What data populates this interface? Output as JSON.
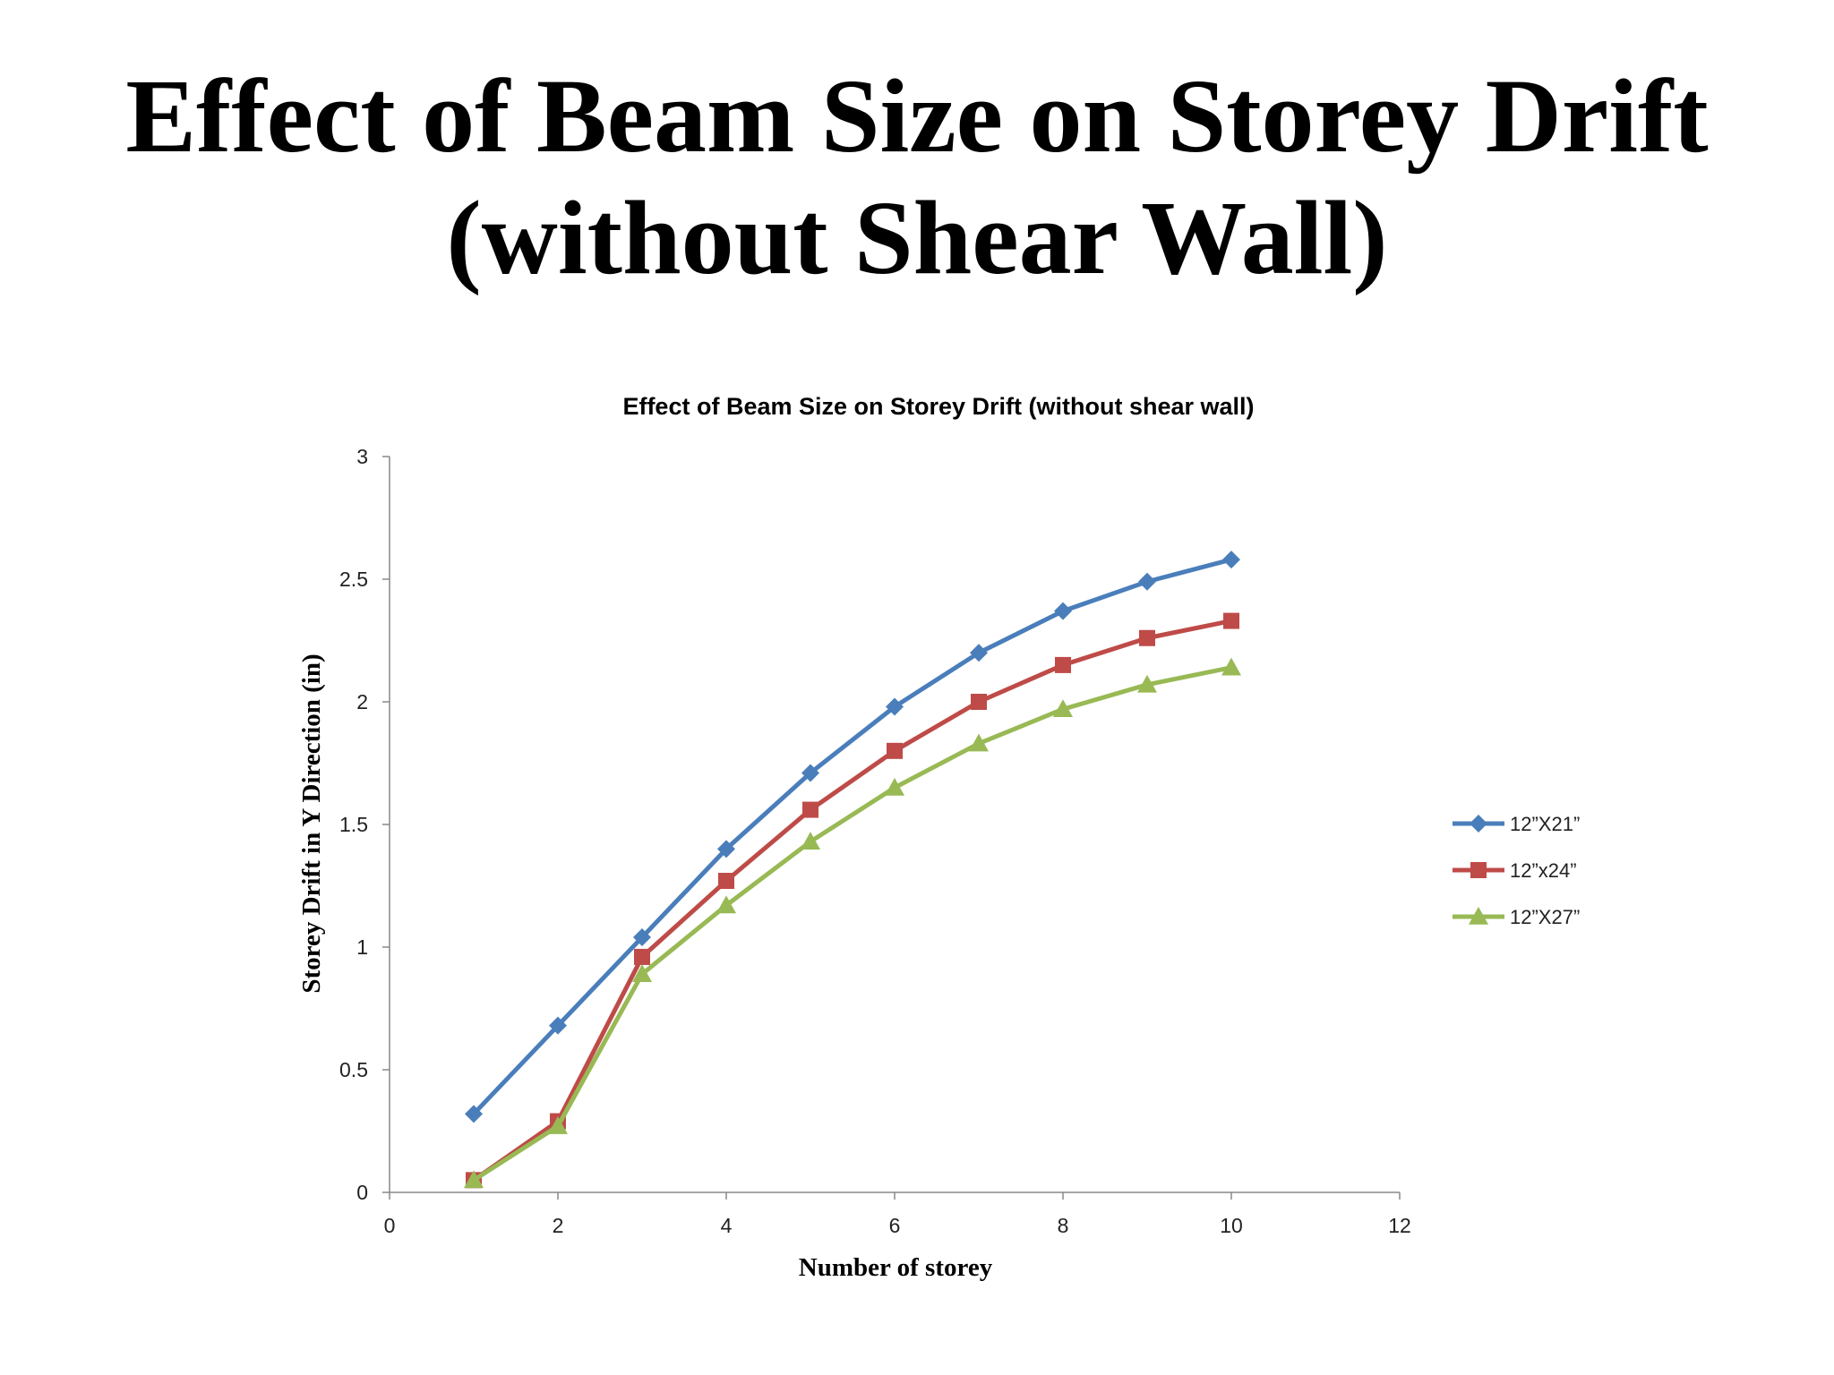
{
  "slide": {
    "title_line1": "Effect of Beam Size on Storey Drift",
    "title_line2": "(without Shear Wall)"
  },
  "chart_data": {
    "type": "line",
    "title": "Effect of Beam Size on Storey Drift (without shear wall)",
    "xlabel": "Number of storey",
    "ylabel": "Storey Drift  in Y Direction (in)",
    "xlim": [
      0,
      12
    ],
    "ylim": [
      0,
      3
    ],
    "xticks": [
      0,
      2,
      4,
      6,
      8,
      10,
      12
    ],
    "yticks": [
      0,
      0.5,
      1,
      1.5,
      2,
      2.5,
      3
    ],
    "grid": false,
    "legend_position": "right",
    "x": [
      1,
      2,
      3,
      4,
      5,
      6,
      7,
      8,
      9,
      10
    ],
    "series": [
      {
        "name": "12”X21”",
        "color": "#4a7ebb",
        "marker": "diamond",
        "values": [
          0.32,
          0.68,
          1.04,
          1.4,
          1.71,
          1.98,
          2.2,
          2.37,
          2.49,
          2.58
        ]
      },
      {
        "name": "12”x24”",
        "color": "#be4b48",
        "marker": "square",
        "values": [
          0.05,
          0.29,
          0.96,
          1.27,
          1.56,
          1.8,
          2.0,
          2.15,
          2.26,
          2.33
        ]
      },
      {
        "name": "12”X27”",
        "color": "#98b954",
        "marker": "triangle",
        "values": [
          0.05,
          0.27,
          0.89,
          1.17,
          1.43,
          1.65,
          1.83,
          1.97,
          2.07,
          2.14
        ]
      }
    ]
  }
}
